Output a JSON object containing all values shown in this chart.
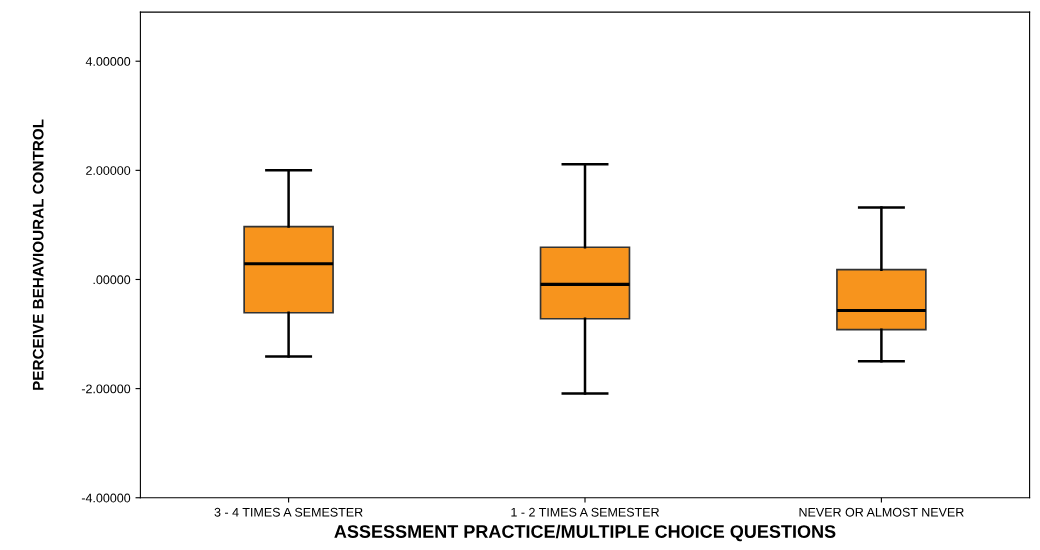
{
  "chart_data": {
    "type": "box",
    "xlabel": "ASSESSMENT PRACTICE/MULTIPLE CHOICE QUESTIONS",
    "ylabel": "PERCEIVE BEHAVIOURAL CONTROL",
    "categories": [
      "3 - 4 TIMES A SEMESTER",
      "1 - 2 TIMES A SEMESTER",
      "NEVER OR ALMOST NEVER"
    ],
    "color": "#f7941d",
    "boxes": [
      {
        "low": -1.41,
        "q1": -0.61,
        "median": 0.29,
        "q3": 0.97,
        "high": 2.0
      },
      {
        "low": -2.09,
        "q1": -0.72,
        "median": -0.09,
        "q3": 0.59,
        "high": 2.11
      },
      {
        "low": -1.5,
        "q1": -0.92,
        "median": -0.57,
        "q3": 0.18,
        "high": 1.32
      }
    ],
    "ylim": [
      -4,
      4.9
    ],
    "yticks": [
      {
        "value": -4,
        "label": "-4.00000"
      },
      {
        "value": -2,
        "label": "-2.00000"
      },
      {
        "value": 0,
        "label": ".00000"
      },
      {
        "value": 2,
        "label": "2.00000"
      },
      {
        "value": 4,
        "label": "4.00000"
      }
    ],
    "grid": false
  }
}
